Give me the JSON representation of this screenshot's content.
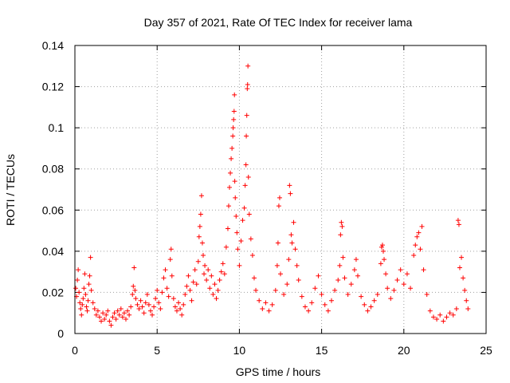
{
  "chart_data": {
    "type": "scatter",
    "title": "Day 357 of 2021, Rate Of TEC Index for receiver lama",
    "xlabel": "GPS time / hours",
    "ylabel": "ROTI / TECUs",
    "xlim": [
      0,
      25
    ],
    "ylim": [
      0,
      0.14
    ],
    "xticks": [
      0,
      5,
      10,
      15,
      20,
      25
    ],
    "xtick_labels": [
      "0",
      "5",
      "10",
      "15",
      "20",
      "25"
    ],
    "yticks": [
      0,
      0.02,
      0.04,
      0.06,
      0.08,
      0.1,
      0.12,
      0.14
    ],
    "ytick_labels": [
      "0",
      "0.02",
      "0.04",
      "0.06",
      "0.08",
      "0.1",
      "0.12",
      "0.14"
    ],
    "grid": true,
    "marker": "+",
    "color": "#ff0000",
    "series": [
      {
        "name": "ROTI",
        "points": [
          [
            0.05,
            0.022
          ],
          [
            0.1,
            0.018
          ],
          [
            0.15,
            0.026
          ],
          [
            0.2,
            0.031
          ],
          [
            0.25,
            0.02
          ],
          [
            0.3,
            0.015
          ],
          [
            0.35,
            0.012
          ],
          [
            0.4,
            0.009
          ],
          [
            0.45,
            0.014
          ],
          [
            0.5,
            0.017
          ],
          [
            0.55,
            0.022
          ],
          [
            0.6,
            0.029
          ],
          [
            0.65,
            0.019
          ],
          [
            0.7,
            0.013
          ],
          [
            0.75,
            0.011
          ],
          [
            0.8,
            0.016
          ],
          [
            0.85,
            0.024
          ],
          [
            0.9,
            0.028
          ],
          [
            0.95,
            0.037
          ],
          [
            1.0,
            0.021
          ],
          [
            1.1,
            0.015
          ],
          [
            1.2,
            0.012
          ],
          [
            1.3,
            0.009
          ],
          [
            1.4,
            0.011
          ],
          [
            1.5,
            0.008
          ],
          [
            1.6,
            0.006
          ],
          [
            1.7,
            0.01
          ],
          [
            1.8,
            0.007
          ],
          [
            1.9,
            0.009
          ],
          [
            2.0,
            0.011
          ],
          [
            2.1,
            0.006
          ],
          [
            2.2,
            0.004
          ],
          [
            2.3,
            0.008
          ],
          [
            2.4,
            0.01
          ],
          [
            2.5,
            0.007
          ],
          [
            2.6,
            0.011
          ],
          [
            2.7,
            0.009
          ],
          [
            2.8,
            0.012
          ],
          [
            2.9,
            0.008
          ],
          [
            3.0,
            0.01
          ],
          [
            3.1,
            0.007
          ],
          [
            3.2,
            0.011
          ],
          [
            3.3,
            0.009
          ],
          [
            3.4,
            0.013
          ],
          [
            3.5,
            0.019
          ],
          [
            3.55,
            0.023
          ],
          [
            3.6,
            0.032
          ],
          [
            3.65,
            0.021
          ],
          [
            3.7,
            0.017
          ],
          [
            3.8,
            0.014
          ],
          [
            3.9,
            0.012
          ],
          [
            4.0,
            0.016
          ],
          [
            4.1,
            0.013
          ],
          [
            4.2,
            0.01
          ],
          [
            4.3,
            0.015
          ],
          [
            4.4,
            0.019
          ],
          [
            4.5,
            0.014
          ],
          [
            4.6,
            0.011
          ],
          [
            4.7,
            0.009
          ],
          [
            4.8,
            0.013
          ],
          [
            4.9,
            0.017
          ],
          [
            5.0,
            0.021
          ],
          [
            5.1,
            0.015
          ],
          [
            5.2,
            0.012
          ],
          [
            5.3,
            0.02
          ],
          [
            5.4,
            0.027
          ],
          [
            5.5,
            0.031
          ],
          [
            5.6,
            0.022
          ],
          [
            5.7,
            0.018
          ],
          [
            5.8,
            0.036
          ],
          [
            5.85,
            0.041
          ],
          [
            5.9,
            0.028
          ],
          [
            6.0,
            0.017
          ],
          [
            6.1,
            0.013
          ],
          [
            6.2,
            0.011
          ],
          [
            6.3,
            0.015
          ],
          [
            6.4,
            0.012
          ],
          [
            6.5,
            0.009
          ],
          [
            6.6,
            0.014
          ],
          [
            6.7,
            0.019
          ],
          [
            6.8,
            0.023
          ],
          [
            6.9,
            0.028
          ],
          [
            7.0,
            0.021
          ],
          [
            7.1,
            0.016
          ],
          [
            7.2,
            0.025
          ],
          [
            7.3,
            0.031
          ],
          [
            7.4,
            0.024
          ],
          [
            7.5,
            0.035
          ],
          [
            7.55,
            0.047
          ],
          [
            7.6,
            0.052
          ],
          [
            7.65,
            0.058
          ],
          [
            7.7,
            0.067
          ],
          [
            7.75,
            0.044
          ],
          [
            7.8,
            0.038
          ],
          [
            7.85,
            0.029
          ],
          [
            7.9,
            0.033
          ],
          [
            8.0,
            0.026
          ],
          [
            8.1,
            0.031
          ],
          [
            8.2,
            0.022
          ],
          [
            8.3,
            0.028
          ],
          [
            8.4,
            0.019
          ],
          [
            8.5,
            0.024
          ],
          [
            8.6,
            0.017
          ],
          [
            8.7,
            0.021
          ],
          [
            8.8,
            0.026
          ],
          [
            8.9,
            0.03
          ],
          [
            9.0,
            0.034
          ],
          [
            9.1,
            0.029
          ],
          [
            9.2,
            0.042
          ],
          [
            9.3,
            0.051
          ],
          [
            9.35,
            0.062
          ],
          [
            9.4,
            0.071
          ],
          [
            9.45,
            0.078
          ],
          [
            9.5,
            0.085
          ],
          [
            9.55,
            0.09
          ],
          [
            9.6,
            0.096
          ],
          [
            9.62,
            0.1
          ],
          [
            9.65,
            0.104
          ],
          [
            9.68,
            0.108
          ],
          [
            9.7,
            0.116
          ],
          [
            9.72,
            0.074
          ],
          [
            9.75,
            0.066
          ],
          [
            9.8,
            0.057
          ],
          [
            9.85,
            0.049
          ],
          [
            9.9,
            0.041
          ],
          [
            10.0,
            0.033
          ],
          [
            10.1,
            0.045
          ],
          [
            10.2,
            0.055
          ],
          [
            10.3,
            0.061
          ],
          [
            10.35,
            0.072
          ],
          [
            10.4,
            0.082
          ],
          [
            10.42,
            0.096
          ],
          [
            10.45,
            0.106
          ],
          [
            10.48,
            0.119
          ],
          [
            10.5,
            0.121
          ],
          [
            10.52,
            0.13
          ],
          [
            10.55,
            0.076
          ],
          [
            10.6,
            0.058
          ],
          [
            10.7,
            0.046
          ],
          [
            10.8,
            0.038
          ],
          [
            10.9,
            0.027
          ],
          [
            11.0,
            0.021
          ],
          [
            11.2,
            0.016
          ],
          [
            11.4,
            0.012
          ],
          [
            11.6,
            0.015
          ],
          [
            11.8,
            0.011
          ],
          [
            12.0,
            0.014
          ],
          [
            12.2,
            0.021
          ],
          [
            12.3,
            0.033
          ],
          [
            12.35,
            0.044
          ],
          [
            12.4,
            0.062
          ],
          [
            12.45,
            0.066
          ],
          [
            12.5,
            0.029
          ],
          [
            12.7,
            0.019
          ],
          [
            12.9,
            0.024
          ],
          [
            13.0,
            0.036
          ],
          [
            13.05,
            0.072
          ],
          [
            13.1,
            0.068
          ],
          [
            13.15,
            0.048
          ],
          [
            13.2,
            0.044
          ],
          [
            13.3,
            0.054
          ],
          [
            13.4,
            0.041
          ],
          [
            13.5,
            0.033
          ],
          [
            13.6,
            0.026
          ],
          [
            13.8,
            0.018
          ],
          [
            14.0,
            0.013
          ],
          [
            14.2,
            0.011
          ],
          [
            14.4,
            0.015
          ],
          [
            14.6,
            0.022
          ],
          [
            14.8,
            0.028
          ],
          [
            15.0,
            0.019
          ],
          [
            15.2,
            0.014
          ],
          [
            15.4,
            0.011
          ],
          [
            15.6,
            0.016
          ],
          [
            15.8,
            0.021
          ],
          [
            16.0,
            0.026
          ],
          [
            16.1,
            0.033
          ],
          [
            16.15,
            0.048
          ],
          [
            16.2,
            0.054
          ],
          [
            16.25,
            0.052
          ],
          [
            16.3,
            0.037
          ],
          [
            16.4,
            0.027
          ],
          [
            16.6,
            0.019
          ],
          [
            16.8,
            0.024
          ],
          [
            17.0,
            0.031
          ],
          [
            17.1,
            0.036
          ],
          [
            17.2,
            0.028
          ],
          [
            17.4,
            0.018
          ],
          [
            17.6,
            0.014
          ],
          [
            17.8,
            0.011
          ],
          [
            18.0,
            0.013
          ],
          [
            18.2,
            0.016
          ],
          [
            18.4,
            0.019
          ],
          [
            18.6,
            0.034
          ],
          [
            18.65,
            0.042
          ],
          [
            18.7,
            0.043
          ],
          [
            18.75,
            0.04
          ],
          [
            18.8,
            0.036
          ],
          [
            18.9,
            0.029
          ],
          [
            19.0,
            0.022
          ],
          [
            19.2,
            0.017
          ],
          [
            19.4,
            0.021
          ],
          [
            19.6,
            0.026
          ],
          [
            19.8,
            0.031
          ],
          [
            20.0,
            0.024
          ],
          [
            20.2,
            0.029
          ],
          [
            20.4,
            0.022
          ],
          [
            20.6,
            0.038
          ],
          [
            20.7,
            0.043
          ],
          [
            20.8,
            0.047
          ],
          [
            20.9,
            0.049
          ],
          [
            21.0,
            0.041
          ],
          [
            21.1,
            0.052
          ],
          [
            21.2,
            0.031
          ],
          [
            21.4,
            0.019
          ],
          [
            21.6,
            0.011
          ],
          [
            21.8,
            0.008
          ],
          [
            22.0,
            0.007
          ],
          [
            22.2,
            0.009
          ],
          [
            22.4,
            0.006
          ],
          [
            22.6,
            0.008
          ],
          [
            22.8,
            0.01
          ],
          [
            23.0,
            0.009
          ],
          [
            23.2,
            0.012
          ],
          [
            23.3,
            0.055
          ],
          [
            23.35,
            0.053
          ],
          [
            23.4,
            0.032
          ],
          [
            23.5,
            0.037
          ],
          [
            23.6,
            0.027
          ],
          [
            23.7,
            0.021
          ],
          [
            23.8,
            0.016
          ],
          [
            23.9,
            0.012
          ]
        ]
      }
    ]
  }
}
